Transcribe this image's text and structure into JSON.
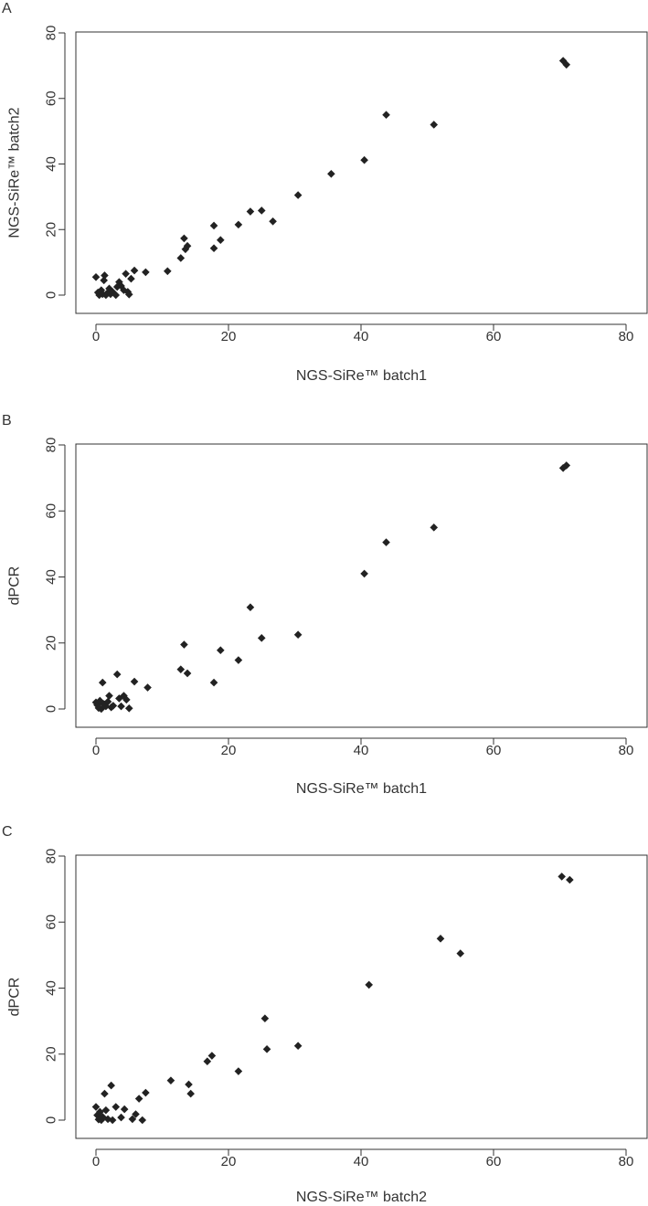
{
  "chart_data": [
    {
      "type": "scatter",
      "panel_label": "A",
      "xlabel": "NGS-SiRe™ batch1",
      "ylabel": "NGS-SiRe™ batch2",
      "xlim": [
        0,
        80
      ],
      "ylim": [
        0,
        80
      ],
      "xticks": [
        0,
        20,
        40,
        60,
        80
      ],
      "yticks": [
        0,
        20,
        40,
        60,
        80
      ],
      "points": [
        [
          0,
          5.5
        ],
        [
          0.3,
          0.8
        ],
        [
          0.5,
          0
        ],
        [
          0.8,
          1.5
        ],
        [
          1.0,
          0.3
        ],
        [
          1.2,
          4.5
        ],
        [
          1.3,
          6.0
        ],
        [
          1.5,
          0
        ],
        [
          1.8,
          0.8
        ],
        [
          2.0,
          2.0
        ],
        [
          2.2,
          0.3
        ],
        [
          2.5,
          1.0
        ],
        [
          3.0,
          0
        ],
        [
          3.2,
          2.5
        ],
        [
          3.5,
          4.0
        ],
        [
          3.8,
          2.8
        ],
        [
          4.2,
          1.5
        ],
        [
          4.5,
          6.5
        ],
        [
          4.8,
          1.0
        ],
        [
          5.0,
          0.2
        ],
        [
          5.3,
          5.0
        ],
        [
          5.8,
          7.5
        ],
        [
          7.5,
          7.0
        ],
        [
          10.8,
          7.3
        ],
        [
          12.8,
          11.3
        ],
        [
          13.3,
          17.3
        ],
        [
          13.5,
          14.0
        ],
        [
          13.8,
          15.0
        ],
        [
          17.8,
          21.2
        ],
        [
          17.8,
          14.3
        ],
        [
          18.8,
          16.8
        ],
        [
          21.5,
          21.5
        ],
        [
          23.3,
          25.5
        ],
        [
          25.0,
          25.8
        ],
        [
          26.7,
          22.5
        ],
        [
          30.5,
          30.5
        ],
        [
          35.5,
          37.0
        ],
        [
          40.5,
          41.2
        ],
        [
          43.8,
          55.0
        ],
        [
          51.0,
          52.0
        ],
        [
          70.5,
          71.5
        ],
        [
          71.0,
          70.3
        ]
      ]
    },
    {
      "type": "scatter",
      "panel_label": "B",
      "xlabel": "NGS-SiRe™ batch1",
      "ylabel": "dPCR",
      "xlim": [
        0,
        80
      ],
      "ylim": [
        0,
        80
      ],
      "xticks": [
        0,
        20,
        40,
        60,
        80
      ],
      "yticks": [
        0,
        20,
        40,
        60,
        80
      ],
      "points": [
        [
          0,
          2.0
        ],
        [
          0.2,
          1.2
        ],
        [
          0.4,
          0.3
        ],
        [
          0.6,
          2.5
        ],
        [
          0.8,
          0
        ],
        [
          1.0,
          8.0
        ],
        [
          1.2,
          1.5
        ],
        [
          1.5,
          0.8
        ],
        [
          1.8,
          2.2
        ],
        [
          2.0,
          4.0
        ],
        [
          2.3,
          0.5
        ],
        [
          2.6,
          1.0
        ],
        [
          3.2,
          10.5
        ],
        [
          3.5,
          3.2
        ],
        [
          3.8,
          0.8
        ],
        [
          4.2,
          4.0
        ],
        [
          4.6,
          2.8
        ],
        [
          5.0,
          0.2
        ],
        [
          5.8,
          8.3
        ],
        [
          7.8,
          6.5
        ],
        [
          12.8,
          12.0
        ],
        [
          13.3,
          19.5
        ],
        [
          13.8,
          10.8
        ],
        [
          17.8,
          8.0
        ],
        [
          18.8,
          17.8
        ],
        [
          21.5,
          14.8
        ],
        [
          23.3,
          30.8
        ],
        [
          25.0,
          21.5
        ],
        [
          30.5,
          22.5
        ],
        [
          40.5,
          41.0
        ],
        [
          43.8,
          50.5
        ],
        [
          51.0,
          55.0
        ],
        [
          70.5,
          73.0
        ],
        [
          71.0,
          73.8
        ]
      ]
    },
    {
      "type": "scatter",
      "panel_label": "C",
      "xlabel": "NGS-SiRe™ batch2",
      "ylabel": "dPCR",
      "xlim": [
        0,
        80
      ],
      "ylim": [
        0,
        80
      ],
      "xticks": [
        0,
        20,
        40,
        60,
        80
      ],
      "yticks": [
        0,
        20,
        40,
        60,
        80
      ],
      "points": [
        [
          0,
          4.0
        ],
        [
          0.2,
          1.5
        ],
        [
          0.4,
          0.2
        ],
        [
          0.6,
          2.5
        ],
        [
          0.8,
          0
        ],
        [
          1.0,
          1.0
        ],
        [
          1.3,
          8.0
        ],
        [
          1.5,
          3.0
        ],
        [
          1.8,
          0.3
        ],
        [
          2.3,
          10.5
        ],
        [
          2.5,
          0
        ],
        [
          3.0,
          4.0
        ],
        [
          3.8,
          0.8
        ],
        [
          4.3,
          3.3
        ],
        [
          5.5,
          0.3
        ],
        [
          6.0,
          1.8
        ],
        [
          6.5,
          6.5
        ],
        [
          7.0,
          0
        ],
        [
          7.5,
          8.3
        ],
        [
          11.3,
          12.0
        ],
        [
          14.0,
          10.8
        ],
        [
          14.3,
          8.0
        ],
        [
          16.8,
          17.8
        ],
        [
          17.5,
          19.5
        ],
        [
          21.5,
          14.8
        ],
        [
          25.5,
          30.8
        ],
        [
          25.8,
          21.5
        ],
        [
          30.5,
          22.5
        ],
        [
          41.2,
          41.0
        ],
        [
          52.0,
          55.0
        ],
        [
          55.0,
          50.5
        ],
        [
          70.3,
          73.8
        ],
        [
          71.5,
          72.8
        ]
      ]
    }
  ]
}
